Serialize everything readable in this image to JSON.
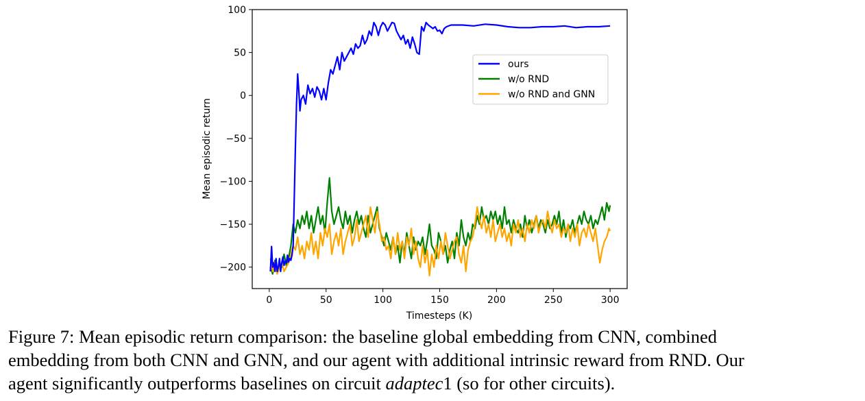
{
  "chart_data": {
    "type": "line",
    "xlabel": "Timesteps (K)",
    "ylabel": "Mean episodic return",
    "xlim": [
      -15,
      315
    ],
    "ylim": [
      -225,
      100
    ],
    "xticks": [
      0,
      50,
      100,
      150,
      200,
      250,
      300
    ],
    "yticks": [
      100,
      50,
      0,
      -50,
      -100,
      -150,
      -200
    ],
    "ytick_labels": [
      "100",
      "50",
      "0",
      "−50",
      "−100",
      "−150",
      "−200"
    ],
    "grid": false,
    "legend_position": "upper-right",
    "series": [
      {
        "name": "ours",
        "color": "#0000ff",
        "x": [
          1,
          2,
          3,
          4,
          5,
          6,
          7,
          8,
          9,
          10,
          11,
          12,
          13,
          14,
          15,
          16,
          17,
          18,
          19,
          20,
          21,
          22,
          23,
          24,
          25,
          26,
          27,
          28,
          30,
          32,
          34,
          36,
          38,
          40,
          42,
          44,
          46,
          48,
          50,
          52,
          54,
          56,
          58,
          60,
          62,
          64,
          66,
          68,
          70,
          72,
          74,
          76,
          78,
          80,
          82,
          84,
          86,
          88,
          90,
          92,
          94,
          96,
          98,
          100,
          102,
          104,
          106,
          108,
          110,
          112,
          114,
          116,
          118,
          120,
          122,
          124,
          126,
          128,
          130,
          132,
          134,
          136,
          138,
          140,
          142,
          144,
          146,
          148,
          150,
          152,
          154,
          156,
          160,
          170,
          180,
          190,
          200,
          210,
          220,
          230,
          240,
          250,
          260,
          270,
          280,
          290,
          300
        ],
        "y": [
          -205,
          -176,
          -200,
          -195,
          -205,
          -190,
          -205,
          -200,
          -190,
          -205,
          -195,
          -188,
          -198,
          -193,
          -195,
          -186,
          -194,
          -190,
          -192,
          -186,
          -175,
          -120,
          -60,
          -10,
          25,
          5,
          -18,
          -5,
          0,
          -10,
          12,
          2,
          8,
          -2,
          10,
          5,
          -5,
          8,
          -5,
          15,
          30,
          25,
          35,
          45,
          30,
          50,
          40,
          45,
          50,
          55,
          48,
          60,
          55,
          58,
          70,
          60,
          65,
          75,
          70,
          85,
          80,
          70,
          80,
          85,
          82,
          75,
          80,
          85,
          84,
          75,
          70,
          65,
          70,
          60,
          65,
          55,
          68,
          60,
          50,
          48,
          80,
          75,
          85,
          82,
          80,
          78,
          80,
          75,
          76,
          72,
          78,
          80,
          82,
          82,
          81,
          83,
          82,
          80,
          79,
          79,
          80,
          80,
          81,
          79,
          80,
          80,
          81
        ]
      },
      {
        "name": "w/o RND",
        "color": "#008000",
        "x": [
          1,
          3,
          5,
          7,
          9,
          11,
          13,
          15,
          17,
          19,
          21,
          23,
          25,
          27,
          29,
          31,
          33,
          35,
          37,
          39,
          41,
          43,
          45,
          47,
          49,
          51,
          53,
          55,
          57,
          59,
          61,
          63,
          65,
          67,
          69,
          71,
          73,
          75,
          77,
          79,
          81,
          83,
          85,
          87,
          89,
          91,
          93,
          95,
          97,
          99,
          101,
          103,
          105,
          107,
          109,
          111,
          113,
          115,
          117,
          119,
          121,
          123,
          125,
          127,
          129,
          131,
          133,
          135,
          137,
          139,
          141,
          143,
          145,
          147,
          149,
          151,
          153,
          155,
          157,
          159,
          161,
          163,
          165,
          167,
          169,
          171,
          173,
          175,
          177,
          179,
          181,
          183,
          185,
          187,
          189,
          191,
          193,
          195,
          197,
          199,
          201,
          203,
          205,
          207,
          209,
          211,
          213,
          215,
          217,
          219,
          221,
          223,
          225,
          227,
          229,
          231,
          233,
          235,
          237,
          239,
          241,
          243,
          245,
          247,
          249,
          251,
          253,
          255,
          257,
          259,
          261,
          263,
          265,
          267,
          269,
          271,
          273,
          275,
          277,
          279,
          281,
          283,
          285,
          287,
          289,
          291,
          293,
          295,
          297,
          299,
          300
        ],
        "y": [
          -200,
          -208,
          -192,
          -205,
          -195,
          -200,
          -185,
          -198,
          -190,
          -175,
          -150,
          -160,
          -145,
          -155,
          -140,
          -150,
          -135,
          -155,
          -140,
          -160,
          -145,
          -130,
          -150,
          -140,
          -160,
          -125,
          -96,
          -135,
          -150,
          -140,
          -130,
          -145,
          -155,
          -135,
          -150,
          -140,
          -160,
          -145,
          -135,
          -150,
          -140,
          -155,
          -165,
          -140,
          -160,
          -150,
          -140,
          -130,
          -155,
          -165,
          -175,
          -160,
          -170,
          -180,
          -165,
          -185,
          -175,
          -195,
          -170,
          -185,
          -160,
          -175,
          -190,
          -165,
          -180,
          -170,
          -175,
          -165,
          -185,
          -170,
          -150,
          -175,
          -180,
          -190,
          -160,
          -170,
          -185,
          -175,
          -195,
          -180,
          -170,
          -190,
          -160,
          -175,
          -145,
          -165,
          -175,
          -160,
          -170,
          -150,
          -155,
          -140,
          -150,
          -130,
          -145,
          -140,
          -150,
          -135,
          -145,
          -135,
          -150,
          -140,
          -155,
          -130,
          -150,
          -145,
          -160,
          -145,
          -155,
          -160,
          -150,
          -165,
          -140,
          -155,
          -145,
          -160,
          -150,
          -140,
          -155,
          -145,
          -150,
          -160,
          -145,
          -155,
          -150,
          -140,
          -150,
          -135,
          -160,
          -145,
          -165,
          -150,
          -155,
          -145,
          -160,
          -150,
          -140,
          -150,
          -135,
          -145,
          -150,
          -140,
          -155,
          -145,
          -150,
          -140,
          -130,
          -145,
          -125,
          -135,
          -128
        ]
      },
      {
        "name": "w/o RND and GNN",
        "color": "#ffa500",
        "x": [
          1,
          3,
          5,
          7,
          9,
          11,
          13,
          15,
          17,
          19,
          21,
          23,
          25,
          27,
          29,
          31,
          33,
          35,
          37,
          39,
          41,
          43,
          45,
          47,
          49,
          51,
          53,
          55,
          57,
          59,
          61,
          63,
          65,
          67,
          69,
          71,
          73,
          75,
          77,
          79,
          81,
          83,
          85,
          87,
          89,
          91,
          93,
          95,
          97,
          99,
          101,
          103,
          105,
          107,
          109,
          111,
          113,
          115,
          117,
          119,
          121,
          123,
          125,
          127,
          129,
          131,
          133,
          135,
          137,
          139,
          141,
          143,
          145,
          147,
          149,
          151,
          153,
          155,
          157,
          159,
          161,
          163,
          165,
          167,
          169,
          171,
          173,
          175,
          177,
          179,
          181,
          183,
          185,
          187,
          189,
          191,
          193,
          195,
          197,
          199,
          201,
          203,
          205,
          207,
          209,
          211,
          213,
          215,
          217,
          219,
          221,
          223,
          225,
          227,
          229,
          231,
          233,
          235,
          237,
          239,
          241,
          243,
          245,
          247,
          249,
          251,
          253,
          255,
          257,
          259,
          261,
          263,
          265,
          267,
          269,
          271,
          273,
          275,
          277,
          279,
          281,
          283,
          285,
          287,
          289,
          291,
          293,
          295,
          297,
          299,
          300
        ],
        "y": [
          -190,
          -205,
          -195,
          -208,
          -200,
          -195,
          -205,
          -200,
          -195,
          -185,
          -175,
          -180,
          -165,
          -185,
          -175,
          -190,
          -170,
          -180,
          -160,
          -185,
          -170,
          -190,
          -160,
          -175,
          -155,
          -165,
          -150,
          -185,
          -170,
          -160,
          -175,
          -155,
          -185,
          -170,
          -160,
          -150,
          -175,
          -165,
          -145,
          -170,
          -160,
          -150,
          -140,
          -165,
          -130,
          -145,
          -160,
          -135,
          -150,
          -170,
          -165,
          -180,
          -175,
          -190,
          -165,
          -185,
          -160,
          -180,
          -170,
          -190,
          -165,
          -175,
          -155,
          -185,
          -170,
          -190,
          -200,
          -175,
          -195,
          -180,
          -210,
          -185,
          -200,
          -175,
          -190,
          -170,
          -185,
          -160,
          -175,
          -190,
          -180,
          -170,
          -165,
          -185,
          -195,
          -175,
          -205,
          -180,
          -170,
          -165,
          -150,
          -130,
          -145,
          -155,
          -140,
          -160,
          -150,
          -165,
          -145,
          -170,
          -160,
          -150,
          -165,
          -155,
          -170,
          -160,
          -175,
          -150,
          -160,
          -145,
          -165,
          -155,
          -170,
          -150,
          -160,
          -145,
          -155,
          -140,
          -160,
          -150,
          -145,
          -155,
          -135,
          -150,
          -160,
          -145,
          -155,
          -150,
          -165,
          -155,
          -160,
          -150,
          -170,
          -155,
          -165,
          -150,
          -175,
          -160,
          -155,
          -165,
          -150,
          -160,
          -170,
          -155,
          -175,
          -195,
          -180,
          -170,
          -165,
          -155,
          -158
        ]
      }
    ]
  },
  "caption": {
    "line1": "Figure 7: Mean episodic return comparison: the baseline global embedding from CNN, combined",
    "line2": "embedding from both CNN and GNN, and our agent with additional intrinsic reward from RND. Our",
    "line3_before": "agent significantly outperforms baselines on circuit ",
    "line3_italic": "adaptec",
    "line3_number": "1",
    "line3_after": " (so for other circuits)."
  }
}
